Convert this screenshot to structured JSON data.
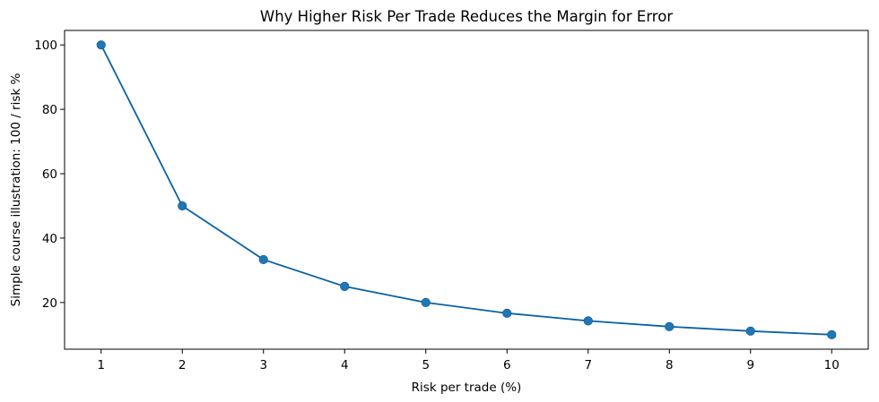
{
  "chart_data": {
    "type": "line",
    "title": "Why Higher Risk Per Trade Reduces the Margin for Error",
    "xlabel": "Risk per trade (%)",
    "ylabel": "Simple course illustration: 100 / risk %",
    "x": [
      1,
      2,
      3,
      4,
      5,
      6,
      7,
      8,
      9,
      10
    ],
    "series": [
      {
        "values": [
          100,
          50,
          33.33,
          25,
          20,
          16.67,
          14.29,
          12.5,
          11.11,
          10
        ],
        "color": "#1f77b4",
        "line_color": "#0a62a6",
        "marker": "circle"
      }
    ],
    "xlim": [
      0.55,
      10.45
    ],
    "ylim": [
      5.5,
      104.5
    ],
    "xticks": [
      1,
      2,
      3,
      4,
      5,
      6,
      7,
      8,
      9,
      10
    ],
    "yticks": [
      20,
      40,
      60,
      80,
      100
    ],
    "grid": false
  }
}
